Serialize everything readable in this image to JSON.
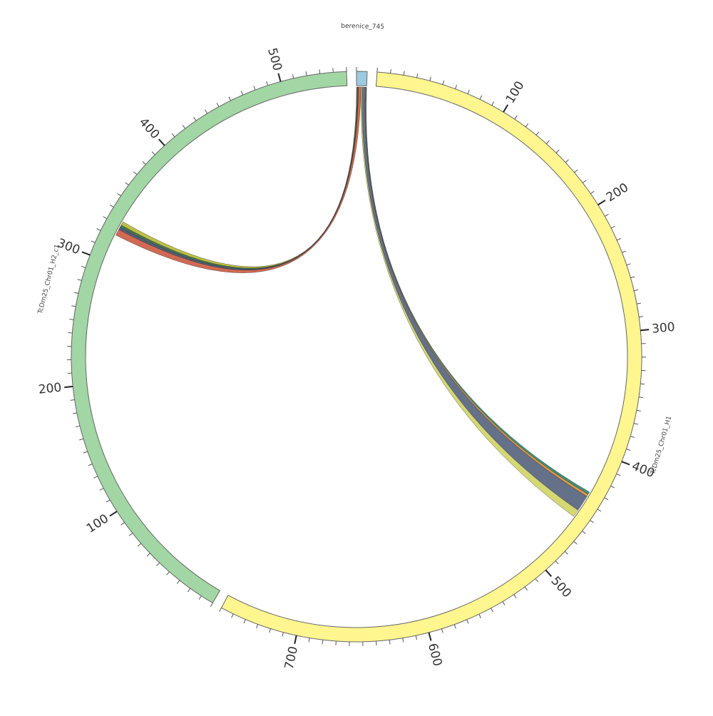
{
  "chart_data": {
    "type": "chord",
    "segments": [
      {
        "name": "berenice_745",
        "length": 8,
        "color": "#9ecae1"
      },
      {
        "name": "TcDm25_Chr01_H1",
        "length": 760,
        "color": "#fff68f",
        "ticks": [
          100,
          200,
          300,
          400,
          500,
          600,
          700
        ]
      },
      {
        "name": "TcDm25_Chr01_H2_c1",
        "length": 550,
        "color": "#a2d6a4",
        "ticks": [
          100,
          200,
          300,
          400,
          500
        ]
      }
    ],
    "minor_tick_interval": 10,
    "links": [
      {
        "source": 0,
        "source_range": [
          7.5,
          8
        ],
        "target": 1,
        "target_range": [
          432,
          434
        ],
        "color": "#2e8b74"
      },
      {
        "source": 0,
        "source_range": [
          7,
          7.5
        ],
        "target": 1,
        "target_range": [
          434,
          436
        ],
        "color": "#e0913a"
      },
      {
        "source": 0,
        "source_range": [
          4.5,
          7
        ],
        "target": 1,
        "target_range": [
          436,
          449
        ],
        "color": "#5d6883"
      },
      {
        "source": 0,
        "source_range": [
          3.5,
          4.5
        ],
        "target": 1,
        "target_range": [
          449,
          455
        ],
        "color": "#d2d66a"
      },
      {
        "source": 0,
        "source_range": [
          0,
          0.5
        ],
        "target": 2,
        "target_range": [
          331,
          334
        ],
        "color": "#b9bd3a"
      },
      {
        "source": 0,
        "source_range": [
          0.5,
          1
        ],
        "target": 2,
        "target_range": [
          329,
          331
        ],
        "color": "#3d6b4a"
      },
      {
        "source": 0,
        "source_range": [
          1,
          1.5
        ],
        "target": 2,
        "target_range": [
          327,
          329
        ],
        "color": "#4d5570"
      },
      {
        "source": 0,
        "source_range": [
          1.5,
          3.5
        ],
        "target": 2,
        "target_range": [
          322,
          327
        ],
        "color": "#d0624a"
      }
    ]
  }
}
